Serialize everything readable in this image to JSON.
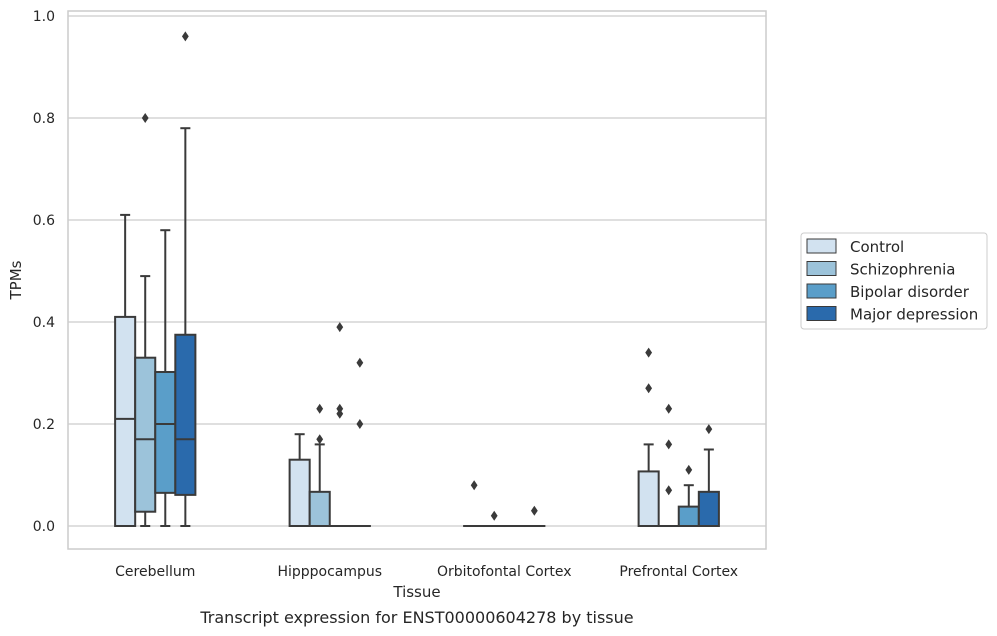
{
  "chart_data": {
    "type": "box",
    "xlabel": "Tissue",
    "ylabel": "TPMs",
    "caption": "Transcript expression for ENST00000604278 by tissue",
    "ylim": [
      -0.045,
      1.01
    ],
    "yticks": [
      "0.0",
      "0.2",
      "0.4",
      "0.6",
      "0.8",
      "1.0"
    ],
    "ytick_values": [
      0.0,
      0.2,
      0.4,
      0.6,
      0.8,
      1.0
    ],
    "grid": true,
    "legend_placement": "center-right",
    "categories": [
      "Cerebellum",
      "Hipppocampus",
      "Orbitofontal Cortex",
      "Prefrontal Cortex"
    ],
    "series": [
      {
        "name": "Control",
        "color": "#d2e2f0",
        "boxes": [
          {
            "min": 0.0,
            "q1": 0.0,
            "median": 0.21,
            "q3": 0.41,
            "max": 0.61,
            "outliers": []
          },
          {
            "min": 0.0,
            "q1": 0.0,
            "median": 0.0,
            "q3": 0.13,
            "max": 0.18,
            "outliers": []
          },
          {
            "min": 0.0,
            "q1": 0.0,
            "median": 0.0,
            "q3": 0.0,
            "max": 0.0,
            "outliers": [
              0.08
            ]
          },
          {
            "min": 0.0,
            "q1": 0.0,
            "median": 0.0,
            "q3": 0.107,
            "max": 0.16,
            "outliers": [
              0.27,
              0.34
            ]
          }
        ]
      },
      {
        "name": "Schizophrenia",
        "color": "#9cc3da",
        "boxes": [
          {
            "min": 0.0,
            "q1": 0.028,
            "median": 0.17,
            "q3": 0.33,
            "max": 0.49,
            "outliers": [
              0.8
            ]
          },
          {
            "min": 0.0,
            "q1": 0.0,
            "median": 0.0,
            "q3": 0.067,
            "max": 0.16,
            "outliers": [
              0.17,
              0.23
            ]
          },
          {
            "min": 0.0,
            "q1": 0.0,
            "median": 0.0,
            "q3": 0.0,
            "max": 0.0,
            "outliers": [
              0.02
            ]
          },
          {
            "min": 0.0,
            "q1": 0.0,
            "median": 0.0,
            "q3": 0.0,
            "max": 0.0,
            "outliers": [
              0.07,
              0.16,
              0.23
            ]
          }
        ]
      },
      {
        "name": "Bipolar disorder",
        "color": "#5a9ec9",
        "boxes": [
          {
            "min": 0.0,
            "q1": 0.065,
            "median": 0.2,
            "q3": 0.302,
            "max": 0.58,
            "outliers": []
          },
          {
            "min": 0.0,
            "q1": 0.0,
            "median": 0.0,
            "q3": 0.0,
            "max": 0.0,
            "outliers": [
              0.22,
              0.23,
              0.39
            ]
          },
          {
            "min": 0.0,
            "q1": 0.0,
            "median": 0.0,
            "q3": 0.0,
            "max": 0.0,
            "outliers": []
          },
          {
            "min": 0.0,
            "q1": 0.0,
            "median": 0.0,
            "q3": 0.038,
            "max": 0.08,
            "outliers": [
              0.11
            ]
          }
        ]
      },
      {
        "name": "Major depression",
        "color": "#2a6aac",
        "boxes": [
          {
            "min": 0.0,
            "q1": 0.061,
            "median": 0.17,
            "q3": 0.375,
            "max": 0.78,
            "outliers": [
              0.96
            ]
          },
          {
            "min": 0.0,
            "q1": 0.0,
            "median": 0.0,
            "q3": 0.0,
            "max": 0.0,
            "outliers": [
              0.2,
              0.32
            ]
          },
          {
            "min": 0.0,
            "q1": 0.0,
            "median": 0.0,
            "q3": 0.0,
            "max": 0.0,
            "outliers": [
              0.03
            ]
          },
          {
            "min": 0.0,
            "q1": 0.0,
            "median": 0.0,
            "q3": 0.067,
            "max": 0.15,
            "outliers": [
              0.19
            ]
          }
        ]
      }
    ]
  }
}
